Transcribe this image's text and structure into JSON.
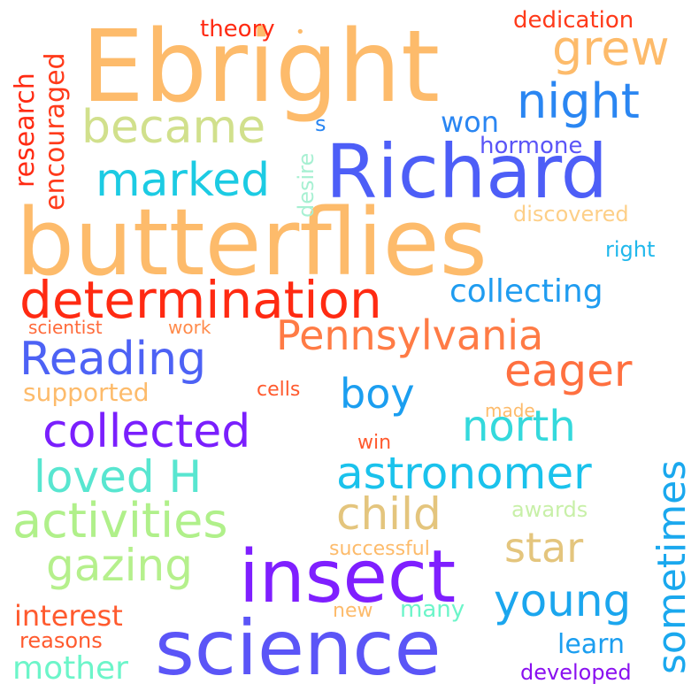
{
  "colors": {
    "background": "#ffffff",
    "orange_light": "#fdbb6b",
    "blue": "#4d5ef7",
    "violet": "#7f1fff",
    "red": "#ff2a12",
    "orange_red": "#ff6a3a",
    "cyan": "#1ccbe3",
    "sky": "#2aa6f0",
    "green_light": "#b0f08a",
    "yellow_green": "#d1e08c",
    "mint": "#6cf5c9",
    "tan": "#e8c77f"
  },
  "words": [
    {
      "id": "ebright",
      "text": "Ebright",
      "color": "#fdbb6b"
    },
    {
      "id": "butterflies",
      "text": "butterflies",
      "color": "#fdbb6b"
    },
    {
      "id": "richard",
      "text": "Richard",
      "color": "#4d5ef7"
    },
    {
      "id": "insect",
      "text": "insect",
      "color": "#7f1fff"
    },
    {
      "id": "science",
      "text": "science",
      "color": "#5b55f7"
    },
    {
      "id": "determination",
      "text": "determination",
      "color": "#ff2a12"
    },
    {
      "id": "pennsylvania",
      "text": "Pennsylvania",
      "color": "#ff7b45"
    },
    {
      "id": "reading",
      "text": "Reading",
      "color": "#4d62f5"
    },
    {
      "id": "collected",
      "text": "collected",
      "color": "#7a1ffd"
    },
    {
      "id": "activities",
      "text": "activities",
      "color": "#b0f08a"
    },
    {
      "id": "astronomer",
      "text": "astronomer",
      "color": "#1ac2ec"
    },
    {
      "id": "loved-h",
      "text": "loved H",
      "color": "#58e6d0"
    },
    {
      "id": "gazing",
      "text": "gazing",
      "color": "#b5f08c"
    },
    {
      "id": "child",
      "text": "child",
      "color": "#e4c57d"
    },
    {
      "id": "marked",
      "text": "marked",
      "color": "#1ccbe3"
    },
    {
      "id": "became",
      "text": "became",
      "color": "#d1e08c"
    },
    {
      "id": "night",
      "text": "night",
      "color": "#2a86f2"
    },
    {
      "id": "grew",
      "text": "grew",
      "color": "#fdbb6b"
    },
    {
      "id": "boy",
      "text": "boy",
      "color": "#1b9ef0"
    },
    {
      "id": "north",
      "text": "north",
      "color": "#34d9dc"
    },
    {
      "id": "eager",
      "text": "eager",
      "color": "#ff7040"
    },
    {
      "id": "star",
      "text": "star",
      "color": "#e4c57d"
    },
    {
      "id": "young",
      "text": "young",
      "color": "#1ba6ee"
    },
    {
      "id": "collecting",
      "text": "collecting",
      "color": "#1f9cf0"
    },
    {
      "id": "sometimes",
      "text": "sometimes",
      "color": "#1aa8ee",
      "vertical": true
    },
    {
      "id": "mother",
      "text": "mother",
      "color": "#6cf5c9"
    },
    {
      "id": "interest",
      "text": "interest",
      "color": "#ff5a2e"
    },
    {
      "id": "supported",
      "text": "supported",
      "color": "#fdbb6b"
    },
    {
      "id": "research",
      "text": "research",
      "color": "#ff2a12",
      "vertical": true
    },
    {
      "id": "encouraged",
      "text": "encouraged",
      "color": "#ff3a1a",
      "vertical": true
    },
    {
      "id": "won",
      "text": "won",
      "color": "#2a86f2"
    },
    {
      "id": "hormone",
      "text": "hormone",
      "color": "#5b55f7"
    },
    {
      "id": "discovered",
      "text": "discovered",
      "color": "#fdcf88"
    },
    {
      "id": "right",
      "text": "right",
      "color": "#20b8ec"
    },
    {
      "id": "theory",
      "text": "theory",
      "color": "#ff2a12"
    },
    {
      "id": "dedication",
      "text": "dedication",
      "color": "#ff3a1a"
    },
    {
      "id": "s",
      "text": "s",
      "color": "#2a86f2"
    },
    {
      "id": "desire",
      "text": "desire",
      "color": "#a7f0d2",
      "vertical": true
    },
    {
      "id": "scientist",
      "text": "scientist",
      "color": "#ff6a3a"
    },
    {
      "id": "work",
      "text": "work",
      "color": "#ff8a4a"
    },
    {
      "id": "cells",
      "text": "cells",
      "color": "#ff5a2e"
    },
    {
      "id": "made",
      "text": "made",
      "color": "#fdbb6b"
    },
    {
      "id": "win",
      "text": "win",
      "color": "#ff5a2e"
    },
    {
      "id": "awards",
      "text": "awards",
      "color": "#c8f0a8"
    },
    {
      "id": "successful",
      "text": "successful",
      "color": "#fdbb6b"
    },
    {
      "id": "new",
      "text": "new",
      "color": "#fdbb6b"
    },
    {
      "id": "many",
      "text": "many",
      "color": "#6cf5c9"
    },
    {
      "id": "learn",
      "text": "learn",
      "color": "#1b9ef0"
    },
    {
      "id": "reasons",
      "text": "reasons",
      "color": "#ff5a2e"
    },
    {
      "id": "developed",
      "text": "developed",
      "color": "#8a10f0"
    },
    {
      "id": "dot",
      "text": "•",
      "color": "#fdbb6b"
    }
  ]
}
